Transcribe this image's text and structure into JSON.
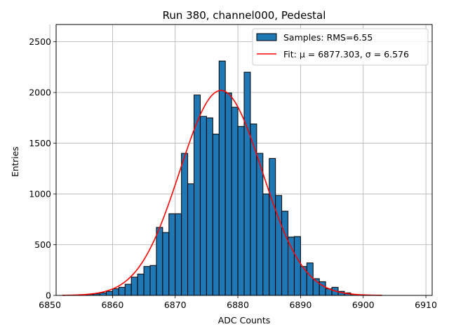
{
  "chart_data": {
    "type": "bar",
    "title": "Run 380, channel000, Pedestal",
    "xlabel": "ADC Counts",
    "ylabel": "Entries",
    "xlim": [
      6851,
      6911
    ],
    "ylim": [
      0,
      2670
    ],
    "x_ticks": [
      "6850",
      "6860",
      "6870",
      "6880",
      "6890",
      "6900",
      "6910"
    ],
    "y_ticks": [
      "0",
      "500",
      "1000",
      "1500",
      "2000",
      "2500"
    ],
    "grid": true,
    "legend_position": "top-right",
    "bar_color": "#1f77b4",
    "fit_color": "#ff0000",
    "bin_width": 1,
    "histogram": {
      "name": "Samples: RMS=6.55",
      "bin_lefts": [
        6855,
        6856,
        6857,
        6858,
        6859,
        6860,
        6861,
        6862,
        6863,
        6864,
        6865,
        6866,
        6867,
        6868,
        6869,
        6870,
        6871,
        6872,
        6873,
        6874,
        6875,
        6876,
        6877,
        6878,
        6879,
        6880,
        6881,
        6882,
        6883,
        6884,
        6885,
        6886,
        6887,
        6888,
        6889,
        6890,
        6891,
        6892,
        6893,
        6894,
        6895,
        6896,
        6897,
        6898,
        6899
      ],
      "values": [
        5,
        10,
        15,
        25,
        40,
        65,
        80,
        110,
        180,
        210,
        285,
        295,
        670,
        620,
        805,
        805,
        1400,
        1100,
        1975,
        1765,
        1750,
        1590,
        2310,
        1995,
        1855,
        1665,
        2200,
        1690,
        1400,
        1000,
        1350,
        985,
        830,
        575,
        580,
        285,
        320,
        165,
        135,
        65,
        80,
        40,
        25,
        10,
        5
      ]
    },
    "fit": {
      "name": "Fit: μ = 6877.303, σ = 6.576",
      "mu": 6877.303,
      "sigma": 6.576,
      "amplitude": 2020,
      "x_range": [
        6852,
        6903
      ]
    }
  }
}
